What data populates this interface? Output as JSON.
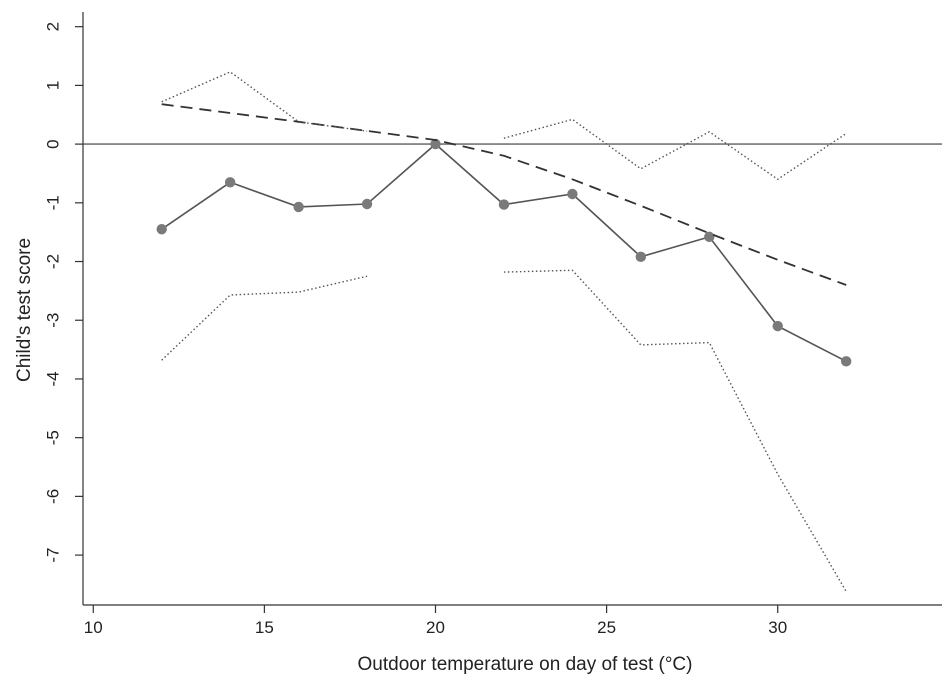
{
  "chart_data": {
    "type": "line",
    "title": "",
    "xlabel": "Outdoor temperature on day of test (°C)",
    "ylabel": "Child's test score",
    "xlim": [
      9.7,
      34.8
    ],
    "ylim": [
      -7.85,
      2.25
    ],
    "x_ticks": [
      10,
      15,
      20,
      25,
      30
    ],
    "y_ticks": [
      2,
      1,
      0,
      -1,
      -2,
      -3,
      -4,
      -5,
      -6,
      -7
    ],
    "grid": false,
    "legend": "none",
    "reference_line": {
      "y": 0,
      "color": "#777777"
    },
    "series": [
      {
        "style": "solid-markers",
        "color": "#555555",
        "x": [
          12,
          14,
          16,
          18,
          20,
          22,
          24,
          26,
          28,
          30,
          32
        ],
        "y": [
          -1.45,
          -0.65,
          -1.07,
          -1.02,
          0.0,
          -1.03,
          -0.85,
          -1.92,
          -1.58,
          -3.1,
          -3.7
        ]
      },
      {
        "style": "dashed",
        "color": "#333333",
        "x": [
          12,
          16,
          20,
          22,
          24,
          26,
          28,
          30,
          32
        ],
        "y": [
          0.68,
          0.38,
          0.07,
          -0.2,
          -0.6,
          -1.05,
          -1.52,
          -1.97,
          -2.4
        ]
      },
      {
        "style": "dotted-upper-left",
        "color": "#555555",
        "x": [
          12,
          14,
          16,
          18
        ],
        "y": [
          0.72,
          1.23,
          0.38,
          0.22
        ]
      },
      {
        "style": "dotted-upper-right",
        "color": "#555555",
        "x": [
          22,
          24,
          26,
          28,
          30,
          32
        ],
        "y": [
          0.1,
          0.42,
          -0.42,
          0.21,
          -0.6,
          0.18
        ]
      },
      {
        "style": "dotted-lower-left",
        "color": "#555555",
        "x": [
          12,
          14,
          16,
          18
        ],
        "y": [
          -3.68,
          -2.57,
          -2.52,
          -2.25
        ]
      },
      {
        "style": "dotted-lower-right",
        "color": "#555555",
        "x": [
          22,
          24,
          26,
          28,
          30,
          32
        ],
        "y": [
          -2.18,
          -2.15,
          -3.42,
          -3.38,
          -5.62,
          -7.62
        ]
      }
    ]
  }
}
